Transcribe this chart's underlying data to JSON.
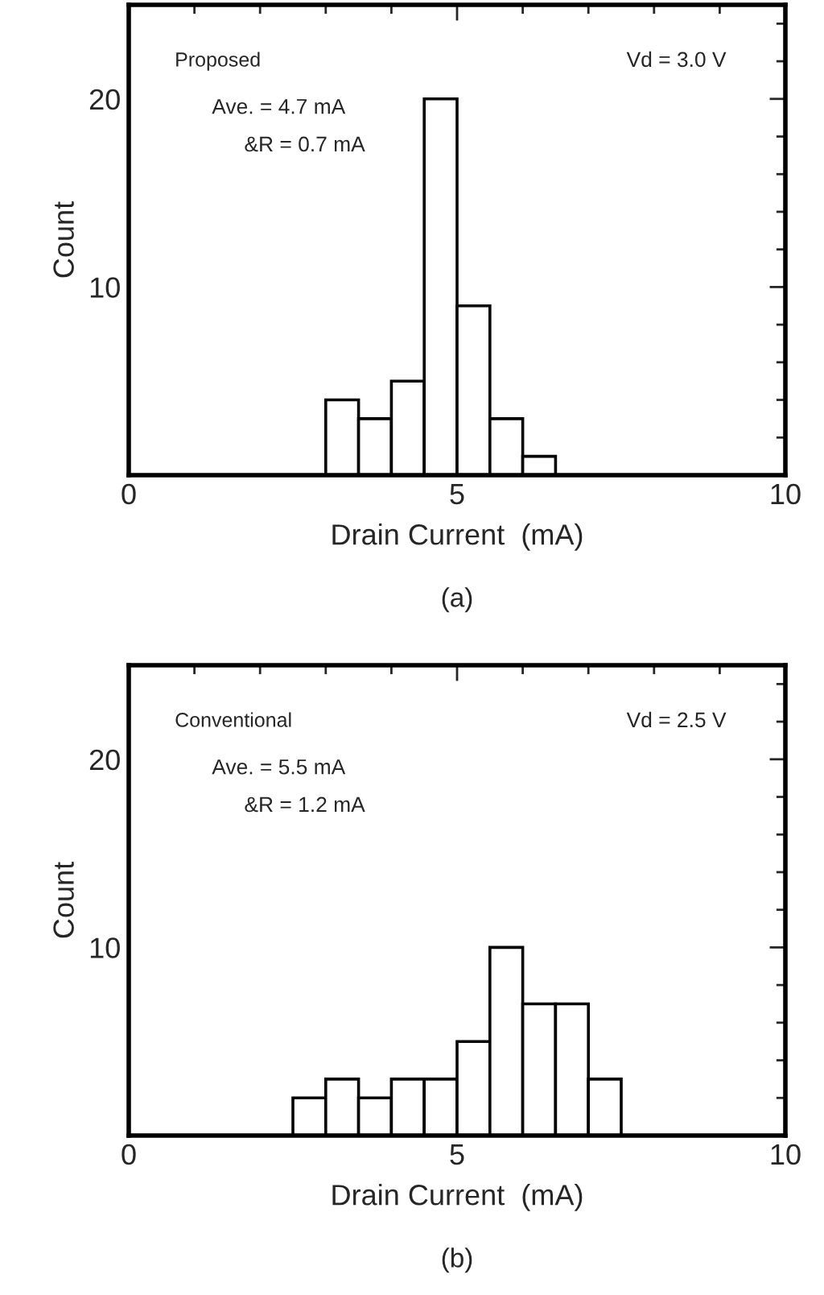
{
  "chart_data": [
    {
      "type": "histogram",
      "xlabel": "Drain Current  (mA)",
      "ylabel": "Count",
      "bins": [
        3.0,
        3.5,
        4.0,
        4.5,
        5.0,
        5.5,
        6.0,
        6.5
      ],
      "values": [
        4,
        3,
        5,
        20,
        9,
        3,
        1
      ],
      "color": "#ffffff",
      "xlim": [
        0,
        10
      ],
      "ylim": [
        0,
        25
      ],
      "xticks": [
        0,
        5,
        10
      ],
      "yticks": [
        {
          "value": 0,
          "label": null
        },
        10,
        20
      ],
      "grid": false,
      "legend": false,
      "annotations": [
        "Proposed",
        "Ave. = 4.7 mA",
        "&R = 0.7 mA",
        "Vd = 3.0 V",
        "(a)"
      ]
    },
    {
      "type": "histogram",
      "xlabel": "Drain Current  (mA)",
      "ylabel": "Count",
      "bins": [
        2.5,
        3.0,
        3.5,
        4.0,
        4.5,
        5.0,
        5.5,
        6.0,
        6.5,
        7.0,
        7.5
      ],
      "values": [
        2,
        3,
        2,
        3,
        3,
        5,
        10,
        7,
        7,
        3
      ],
      "color": "#ffffff",
      "xlim": [
        0,
        10
      ],
      "ylim": [
        0,
        25
      ],
      "xticks": [
        0,
        5,
        10
      ],
      "yticks": [
        {
          "value": 0,
          "label": null
        },
        10,
        20
      ],
      "grid": false,
      "legend": false,
      "annotations": [
        "Conventional",
        "Ave. = 5.5 mA",
        "&R = 1.2 mA",
        "Vd = 2.5 V",
        "(b)"
      ]
    }
  ]
}
